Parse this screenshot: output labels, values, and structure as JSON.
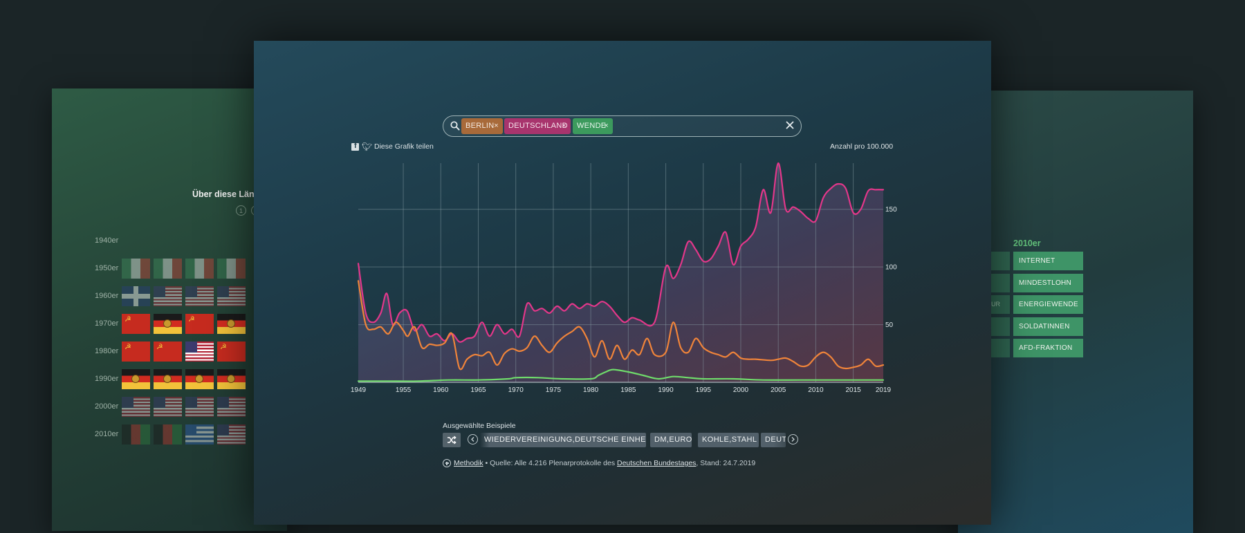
{
  "left_card": {
    "title": "Über diese Länd",
    "pager": [
      "1",
      "2"
    ],
    "decades": [
      "1940er",
      "1950er",
      "1960er",
      "1970er",
      "1980er",
      "1990er",
      "2000er",
      "2010er"
    ],
    "flag_rows": [
      [],
      [
        "italy-flag",
        "italy-flag",
        "italy-flag",
        "italy-flag"
      ],
      [
        "uk-flag",
        "usa-flag",
        "usa-flag",
        "usa-flag"
      ],
      [
        "ussr-flag",
        "gdr-flag",
        "ussr-flag",
        "gdr-flag"
      ],
      [
        "ussr-flag",
        "ussr-flag",
        "usa-flag",
        "ussr-flag"
      ],
      [
        "gdr-flag",
        "gdr-flag",
        "gdr-flag",
        "gdr-flag"
      ],
      [
        "usa-flag",
        "usa-flag",
        "usa-flag",
        "usa-flag"
      ],
      [
        "afghanistan-flag",
        "afghanistan-flag",
        "greece-flag",
        "usa-flag"
      ]
    ]
  },
  "right_card": {
    "heading": "2010er",
    "terms": [
      "INTERNET",
      "MINDESTLOHN",
      "ENERGIEWENDE",
      "SOLDATINNEN",
      "AFD-FRAKTION"
    ],
    "stub_text": "UR"
  },
  "search": {
    "chips": [
      "BERLIN",
      "DEUTSCHLAND",
      "WENDE"
    ],
    "chip_close": "×"
  },
  "share": {
    "label": "Diese Grafik teilen"
  },
  "chart_data": {
    "type": "area",
    "unit_label": "Anzahl pro 100.000",
    "xlim": [
      1949,
      2019
    ],
    "ylim": [
      0,
      190
    ],
    "x_ticks": [
      1949,
      1955,
      1960,
      1965,
      1970,
      1975,
      1980,
      1985,
      1990,
      1995,
      2000,
      2005,
      2010,
      2015,
      2019
    ],
    "y_ticks": [
      50,
      100,
      150
    ],
    "series": [
      {
        "name": "DEUTSCHLAND",
        "color": "#e3378a",
        "points": [
          [
            1949,
            103
          ],
          [
            1950,
            60
          ],
          [
            1951,
            52
          ],
          [
            1952,
            60
          ],
          [
            1952.8,
            77
          ],
          [
            1953.6,
            50
          ],
          [
            1954.5,
            60
          ],
          [
            1955.5,
            62
          ],
          [
            1956.5,
            45
          ],
          [
            1957.5,
            50
          ],
          [
            1958.5,
            40
          ],
          [
            1959.5,
            42
          ],
          [
            1960.5,
            36
          ],
          [
            1961.5,
            42
          ],
          [
            1962.5,
            35
          ],
          [
            1963.5,
            38
          ],
          [
            1964.5,
            40
          ],
          [
            1965.5,
            52
          ],
          [
            1966.5,
            40
          ],
          [
            1967.5,
            50
          ],
          [
            1968.5,
            42
          ],
          [
            1969.5,
            46
          ],
          [
            1970.5,
            40
          ],
          [
            1971.5,
            68
          ],
          [
            1972.5,
            62
          ],
          [
            1973.5,
            64
          ],
          [
            1974.5,
            60
          ],
          [
            1975.5,
            66
          ],
          [
            1976.5,
            62
          ],
          [
            1977.5,
            68
          ],
          [
            1978.5,
            64
          ],
          [
            1979.5,
            68
          ],
          [
            1980.5,
            66
          ],
          [
            1981.5,
            70
          ],
          [
            1982.5,
            66
          ],
          [
            1983.5,
            58
          ],
          [
            1984.5,
            52
          ],
          [
            1985.5,
            56
          ],
          [
            1986.5,
            54
          ],
          [
            1988.5,
            52
          ],
          [
            1990,
            100
          ],
          [
            1991,
            90
          ],
          [
            1992,
            102
          ],
          [
            1993,
            122
          ],
          [
            1994,
            115
          ],
          [
            1995,
            105
          ],
          [
            1996,
            107
          ],
          [
            1997,
            118
          ],
          [
            1998,
            130
          ],
          [
            1999,
            102
          ],
          [
            2000,
            118
          ],
          [
            2001,
            124
          ],
          [
            2002,
            135
          ],
          [
            2003,
            167
          ],
          [
            2004,
            147
          ],
          [
            2005,
            190
          ],
          [
            2006,
            150
          ],
          [
            2007,
            152
          ],
          [
            2008,
            148
          ],
          [
            2009,
            142
          ],
          [
            2010,
            140
          ],
          [
            2011,
            160
          ],
          [
            2012,
            168
          ],
          [
            2013,
            172
          ],
          [
            2014,
            168
          ],
          [
            2015,
            147
          ],
          [
            2016,
            150
          ],
          [
            2017,
            166
          ],
          [
            2018,
            167
          ],
          [
            2019,
            167
          ]
        ]
      },
      {
        "name": "BERLIN",
        "color": "#f0843a",
        "points": [
          [
            1949,
            88
          ],
          [
            1950,
            50
          ],
          [
            1951,
            46
          ],
          [
            1952,
            48
          ],
          [
            1953,
            42
          ],
          [
            1954,
            52
          ],
          [
            1955,
            45
          ],
          [
            1955.6,
            40
          ],
          [
            1956.5,
            48
          ],
          [
            1957.5,
            30
          ],
          [
            1958.5,
            33
          ],
          [
            1959.5,
            32
          ],
          [
            1960.5,
            34
          ],
          [
            1961.5,
            42
          ],
          [
            1962.5,
            12
          ],
          [
            1963.5,
            20
          ],
          [
            1964.5,
            24
          ],
          [
            1965.5,
            23
          ],
          [
            1966.5,
            26
          ],
          [
            1967.5,
            15
          ],
          [
            1968.5,
            25
          ],
          [
            1969.5,
            29
          ],
          [
            1970.5,
            27
          ],
          [
            1971.5,
            30
          ],
          [
            1972.5,
            40
          ],
          [
            1973.5,
            32
          ],
          [
            1974.5,
            26
          ],
          [
            1975.5,
            34
          ],
          [
            1976.5,
            40
          ],
          [
            1977.5,
            44
          ],
          [
            1978.5,
            48
          ],
          [
            1979.5,
            38
          ],
          [
            1980.5,
            22
          ],
          [
            1981.5,
            36
          ],
          [
            1982.5,
            20
          ],
          [
            1983.5,
            32
          ],
          [
            1984.5,
            20
          ],
          [
            1985.5,
            28
          ],
          [
            1986.5,
            24
          ],
          [
            1987.5,
            38
          ],
          [
            1988.5,
            24
          ],
          [
            1990,
            26
          ],
          [
            1991,
            52
          ],
          [
            1992,
            30
          ],
          [
            1993,
            26
          ],
          [
            1994,
            38
          ],
          [
            1995,
            30
          ],
          [
            1996,
            26
          ],
          [
            1997,
            24
          ],
          [
            1998,
            22
          ],
          [
            1999,
            26
          ],
          [
            2000,
            21
          ],
          [
            2001,
            20
          ],
          [
            2002,
            20
          ],
          [
            2004,
            19
          ],
          [
            2005,
            20
          ],
          [
            2006,
            21
          ],
          [
            2007,
            18
          ],
          [
            2008,
            14
          ],
          [
            2009,
            15
          ],
          [
            2010,
            22
          ],
          [
            2011,
            26
          ],
          [
            2012,
            22
          ],
          [
            2013,
            14
          ],
          [
            2014,
            12
          ],
          [
            2015,
            13
          ],
          [
            2016,
            15
          ],
          [
            2017,
            20
          ],
          [
            2018,
            14
          ],
          [
            2019,
            15
          ]
        ]
      },
      {
        "name": "WENDE",
        "color": "#6fdc6b",
        "points": [
          [
            1949,
            1
          ],
          [
            1953,
            1
          ],
          [
            1957,
            1
          ],
          [
            1961,
            2
          ],
          [
            1965,
            2
          ],
          [
            1969,
            3
          ],
          [
            1970,
            4
          ],
          [
            1973,
            4
          ],
          [
            1976,
            3
          ],
          [
            1980,
            3
          ],
          [
            1981,
            6
          ],
          [
            1982,
            9
          ],
          [
            1983,
            11
          ],
          [
            1985,
            9
          ],
          [
            1987,
            6
          ],
          [
            1989,
            3
          ],
          [
            1991,
            5
          ],
          [
            1993,
            4
          ],
          [
            1995,
            3
          ],
          [
            1999,
            3
          ],
          [
            2003,
            2
          ],
          [
            2008,
            2
          ],
          [
            2013,
            2
          ],
          [
            2019,
            2
          ]
        ]
      }
    ]
  },
  "examples": {
    "label": "Ausgewählte Beispiele",
    "items": [
      "WIEDERVEREINIGUNG,DEUTSCHE EINHEIT",
      "DM,EURO",
      "KOHLE,STAHL",
      "DEUT"
    ]
  },
  "footer": {
    "methodik": "Methodik",
    "source_prefix": " • Quelle: Alle 4.216 Plenarprotokolle des ",
    "source_link": "Deutschen Bundestages",
    "source_suffix": ", Stand: 24.7.2019"
  }
}
